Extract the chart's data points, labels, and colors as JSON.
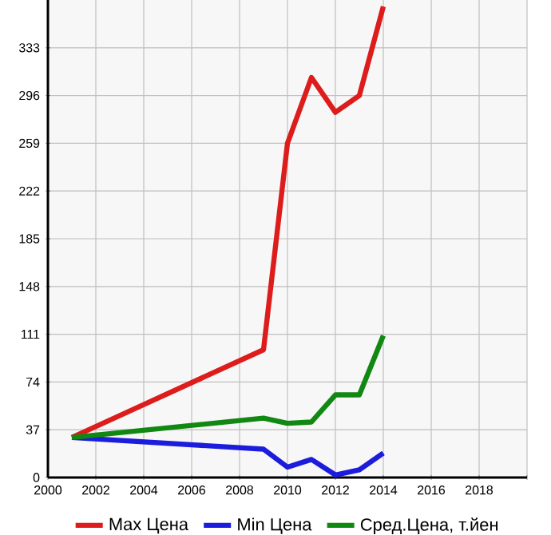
{
  "chart_data": {
    "type": "line",
    "x": [
      2001,
      2009,
      2010,
      2011,
      2012,
      2013,
      2014
    ],
    "series": [
      {
        "name": "Max Цена",
        "color": "#dd1c1c",
        "values": [
          31,
          99,
          259,
          310,
          283,
          296,
          365
        ]
      },
      {
        "name": "Min Цена",
        "color": "#1c1cdd",
        "values": [
          31,
          22,
          8,
          14,
          2,
          6,
          19
        ]
      },
      {
        "name": "Сред.Цена, т.йен",
        "color": "#118811",
        "values": [
          31,
          46,
          42,
          43,
          64,
          64,
          110
        ]
      }
    ],
    "xlim": [
      2000,
      2020
    ],
    "xticks": [
      2000,
      2002,
      2004,
      2006,
      2008,
      2010,
      2012,
      2014,
      2016,
      2018,
      {
        "value": 2020,
        "label": null
      }
    ],
    "ylim": [
      0,
      370
    ],
    "yticks": [
      0,
      37,
      74,
      111,
      148,
      185,
      222,
      259,
      296,
      333
    ],
    "grid": true,
    "legend": "bottom",
    "marker": "none",
    "line_style": "solid"
  }
}
